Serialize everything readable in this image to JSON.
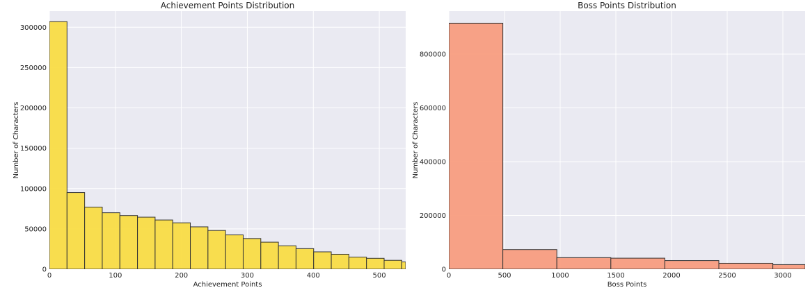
{
  "chart_data": [
    {
      "type": "bar",
      "title": "Achievement Points Distribution",
      "xlabel": "Achievement Points",
      "ylabel": "Number of Characters",
      "xlim": [
        0,
        540
      ],
      "ylim": [
        0,
        320000
      ],
      "xticks": [
        0,
        100,
        200,
        300,
        400,
        500
      ],
      "yticks": [
        0,
        50000,
        100000,
        150000,
        200000,
        250000,
        300000
      ],
      "bin_edges": [
        0,
        26.7,
        53.4,
        80.1,
        106.8,
        133.5,
        160.2,
        186.9,
        213.6,
        240.3,
        267,
        293.7,
        320.4,
        347.1,
        373.8,
        400.5,
        427.2,
        453.9,
        480.6,
        507.3,
        534,
        540
      ],
      "values": [
        307000,
        95000,
        77000,
        70000,
        66500,
        64500,
        61000,
        57500,
        52500,
        48000,
        42500,
        38000,
        33500,
        29000,
        25500,
        21500,
        18500,
        15000,
        13500,
        11000,
        9000
      ],
      "color": "#f9dc45",
      "grid": true
    },
    {
      "type": "bar",
      "title": "Boss Points Distribution",
      "xlabel": "Boss Points",
      "ylabel": "Number of Characters",
      "xlim": [
        0,
        3200
      ],
      "ylim": [
        0,
        960000
      ],
      "xticks": [
        0,
        500,
        1000,
        1500,
        2000,
        2500,
        3000
      ],
      "yticks": [
        0,
        200000,
        400000,
        600000,
        800000
      ],
      "bin_edges": [
        0,
        485,
        970,
        1455,
        1940,
        2425,
        2910,
        3200
      ],
      "values": [
        915000,
        73000,
        43000,
        41000,
        32000,
        22000,
        17000
      ],
      "color": "#f89d7f",
      "grid": true
    }
  ]
}
